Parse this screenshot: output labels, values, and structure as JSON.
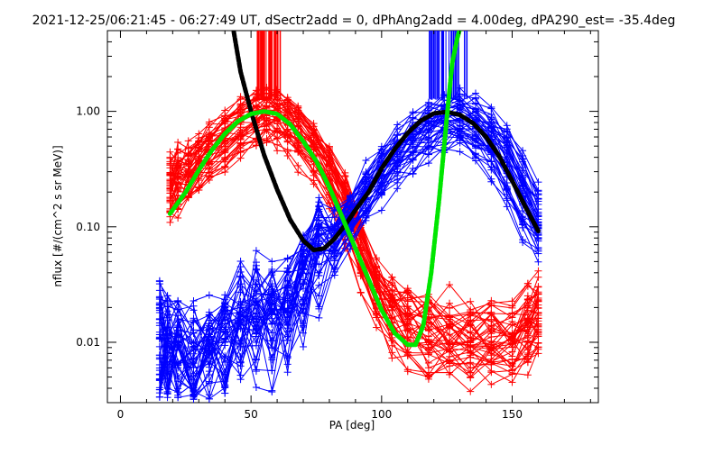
{
  "chart_data": {
    "type": "line",
    "title": "2021-12-25/06:21:45 - 06:27:49 UT, dSectr2add = 0, dPhAng2add = 4.00deg, dPA290_est= -35.4deg",
    "xlabel": "PA [deg]",
    "ylabel": "nflux [#/(cm^2 s sr MeV)]",
    "xlim": [
      -5,
      183
    ],
    "ylim": [
      0.003,
      5.0
    ],
    "y_scale": "log",
    "grid": false,
    "xticks": [
      0,
      50,
      100,
      150
    ],
    "xtick_labels": [
      "0",
      "50",
      "100",
      "150"
    ],
    "yticks": [
      0.01,
      0.1,
      1.0
    ],
    "ytick_labels": [
      "0.01",
      "0.10",
      "1.00"
    ],
    "colors": {
      "red": "#ff0000",
      "blue": "#0000ff",
      "black": "#000000",
      "green": "#00e600"
    },
    "series": [
      {
        "color": "red",
        "style": "thin lines with plus markers",
        "representative_x": [
          19,
          25,
          32,
          45,
          52,
          56,
          60,
          66,
          72,
          80,
          86,
          92,
          97,
          103,
          110,
          120,
          135,
          150,
          160
        ],
        "representative_y": [
          0.18,
          0.26,
          0.4,
          0.7,
          0.85,
          0.92,
          0.9,
          0.72,
          0.52,
          0.3,
          0.14,
          0.06,
          0.03,
          0.018,
          0.012,
          0.01,
          0.009,
          0.008,
          0.015
        ]
      },
      {
        "color": "blue",
        "style": "thin lines with plus markers",
        "representative_x": [
          15,
          20,
          30,
          40,
          52,
          62,
          75,
          88,
          100,
          110,
          120,
          128,
          135,
          145,
          153,
          160
        ],
        "representative_y": [
          0.008,
          0.006,
          0.005,
          0.008,
          0.015,
          0.012,
          0.045,
          0.13,
          0.33,
          0.55,
          0.8,
          0.93,
          0.83,
          0.5,
          0.22,
          0.1
        ]
      },
      {
        "color": "black",
        "style": "thick dashed fit",
        "x": [
          43,
          46,
          50,
          55,
          60,
          65,
          70,
          74,
          78,
          82,
          86,
          90,
          95,
          100,
          105,
          110,
          115,
          120,
          125,
          130,
          135,
          140,
          145,
          150,
          155,
          160
        ],
        "y": [
          5.5,
          2.2,
          1.0,
          0.42,
          0.21,
          0.115,
          0.076,
          0.063,
          0.065,
          0.079,
          0.103,
          0.14,
          0.2,
          0.32,
          0.47,
          0.65,
          0.83,
          0.96,
          0.99,
          0.93,
          0.79,
          0.6,
          0.41,
          0.25,
          0.15,
          0.092
        ]
      },
      {
        "color": "green",
        "style": "thick dashed fit",
        "x": [
          19,
          25,
          30,
          35,
          40,
          45,
          50,
          55,
          60,
          65,
          70,
          75,
          80,
          85,
          90,
          95,
          100,
          105,
          110,
          113,
          116,
          119,
          122,
          125,
          127,
          129,
          130
        ],
        "y": [
          0.13,
          0.2,
          0.31,
          0.46,
          0.64,
          0.82,
          0.95,
          1.0,
          0.95,
          0.77,
          0.55,
          0.37,
          0.22,
          0.12,
          0.065,
          0.035,
          0.019,
          0.012,
          0.0095,
          0.0095,
          0.014,
          0.04,
          0.17,
          0.9,
          2.6,
          4.3,
          5.2
        ]
      }
    ],
    "annotations": [
      {
        "color": "red",
        "text_present": false,
        "description": "vertical lines near 52-62 deg"
      },
      {
        "color": "blue",
        "text_present": false,
        "description": "vertical lines near 118-133 deg"
      }
    ]
  }
}
